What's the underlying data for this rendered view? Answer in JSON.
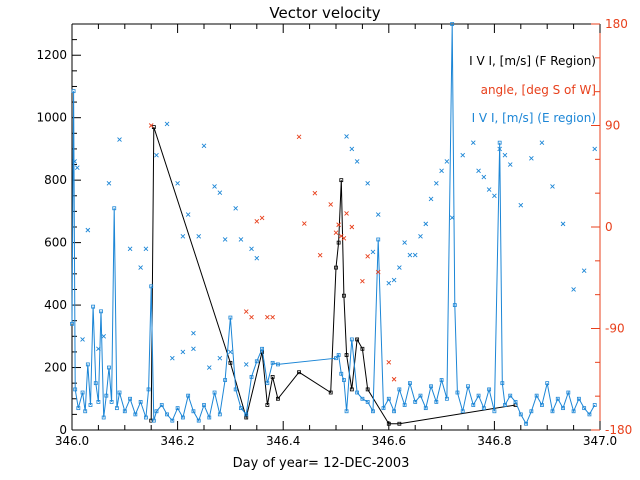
{
  "chart_data": {
    "type": "scatter",
    "title": "Vector velocity",
    "xlabel": "Day of year= 12-DEC-2003",
    "ylabel_left": "",
    "ylabel_right": "",
    "xlim": [
      346.0,
      347.0
    ],
    "ylim_left": [
      0,
      1300
    ],
    "ylim_right": [
      -180,
      180
    ],
    "x_ticks": [
      346.0,
      346.2,
      346.4,
      346.6,
      346.8,
      347.0
    ],
    "x_tick_labels": [
      "346.0",
      "346.2",
      "346.4",
      "346.6",
      "346.8",
      "347.0"
    ],
    "y_left_ticks": [
      0,
      200,
      400,
      600,
      800,
      1000,
      1200
    ],
    "y_left_tick_labels": [
      "0",
      "200",
      "400",
      "600",
      "800",
      "1000",
      "1200"
    ],
    "y_right_ticks": [
      -180,
      -90,
      0,
      90,
      180
    ],
    "y_right_tick_labels": [
      "-180",
      "-90",
      "0",
      "90",
      "180"
    ],
    "colors": {
      "axes": "#000000",
      "f_region": "#000000",
      "angle": "#e8401c",
      "e_region": "#1c86d6"
    },
    "legend": [
      {
        "label": "I V I, [m/s] (F Region)",
        "color": "#000000"
      },
      {
        "label": "angle, [deg S of W]",
        "color": "#e8401c"
      },
      {
        "label": "I V I, [m/s] (E region)",
        "color": "#1c86d6"
      }
    ],
    "series": [
      {
        "name": "|V| F Region",
        "color": "#000000",
        "style": "line-dots",
        "axis": "left",
        "points": [
          [
            346.15,
            30
          ],
          [
            346.155,
            970
          ],
          [
            346.3,
            215
          ],
          [
            346.33,
            40
          ],
          [
            346.36,
            250
          ],
          [
            346.37,
            80
          ],
          [
            346.38,
            170
          ],
          [
            346.39,
            100
          ],
          [
            346.43,
            185
          ],
          [
            346.49,
            120
          ],
          [
            346.5,
            520
          ],
          [
            346.505,
            600
          ],
          [
            346.51,
            800
          ],
          [
            346.515,
            430
          ],
          [
            346.52,
            240
          ],
          [
            346.53,
            130
          ],
          [
            346.54,
            290
          ],
          [
            346.55,
            260
          ],
          [
            346.56,
            130
          ],
          [
            346.6,
            20
          ],
          [
            346.62,
            20
          ],
          [
            346.84,
            80
          ]
        ]
      },
      {
        "name": "|V| E region",
        "color": "#1c86d6",
        "style": "line-dots",
        "axis": "left",
        "points": [
          [
            346.0,
            340
          ],
          [
            346.003,
            1085
          ],
          [
            346.006,
            130
          ],
          [
            346.012,
            70
          ],
          [
            346.02,
            120
          ],
          [
            346.025,
            60
          ],
          [
            346.03,
            210
          ],
          [
            346.035,
            80
          ],
          [
            346.04,
            395
          ],
          [
            346.045,
            150
          ],
          [
            346.05,
            90
          ],
          [
            346.055,
            380
          ],
          [
            346.06,
            40
          ],
          [
            346.065,
            110
          ],
          [
            346.07,
            200
          ],
          [
            346.075,
            90
          ],
          [
            346.08,
            710
          ],
          [
            346.085,
            70
          ],
          [
            346.09,
            120
          ],
          [
            346.1,
            60
          ],
          [
            346.11,
            100
          ],
          [
            346.12,
            50
          ],
          [
            346.13,
            90
          ],
          [
            346.14,
            40
          ],
          [
            346.145,
            130
          ],
          [
            346.15,
            460
          ],
          [
            346.155,
            30
          ],
          [
            346.16,
            60
          ],
          [
            346.17,
            80
          ],
          [
            346.18,
            50
          ],
          [
            346.19,
            30
          ],
          [
            346.2,
            70
          ],
          [
            346.21,
            40
          ],
          [
            346.22,
            110
          ],
          [
            346.23,
            60
          ],
          [
            346.24,
            30
          ],
          [
            346.25,
            80
          ],
          [
            346.26,
            40
          ],
          [
            346.27,
            120
          ],
          [
            346.28,
            50
          ],
          [
            346.29,
            160
          ],
          [
            346.3,
            360
          ],
          [
            346.31,
            130
          ],
          [
            346.32,
            70
          ],
          [
            346.33,
            50
          ],
          [
            346.34,
            170
          ],
          [
            346.35,
            220
          ],
          [
            346.36,
            260
          ],
          [
            346.37,
            150
          ],
          [
            346.38,
            215
          ],
          [
            346.39,
            210
          ],
          [
            346.5,
            230
          ],
          [
            346.505,
            240
          ],
          [
            346.51,
            180
          ],
          [
            346.515,
            160
          ],
          [
            346.52,
            60
          ],
          [
            346.53,
            290
          ],
          [
            346.54,
            120
          ],
          [
            346.55,
            100
          ],
          [
            346.56,
            90
          ],
          [
            346.57,
            60
          ],
          [
            346.58,
            610
          ],
          [
            346.59,
            70
          ],
          [
            346.6,
            100
          ],
          [
            346.61,
            60
          ],
          [
            346.62,
            130
          ],
          [
            346.63,
            80
          ],
          [
            346.64,
            150
          ],
          [
            346.65,
            90
          ],
          [
            346.66,
            110
          ],
          [
            346.67,
            70
          ],
          [
            346.68,
            140
          ],
          [
            346.69,
            90
          ],
          [
            346.7,
            160
          ],
          [
            346.71,
            100
          ],
          [
            346.72,
            1300
          ],
          [
            346.725,
            400
          ],
          [
            346.73,
            120
          ],
          [
            346.74,
            60
          ],
          [
            346.75,
            140
          ],
          [
            346.76,
            80
          ],
          [
            346.77,
            110
          ],
          [
            346.78,
            70
          ],
          [
            346.79,
            130
          ],
          [
            346.8,
            60
          ],
          [
            346.81,
            920
          ],
          [
            346.815,
            150
          ],
          [
            346.82,
            80
          ],
          [
            346.83,
            110
          ],
          [
            346.84,
            90
          ],
          [
            346.85,
            50
          ],
          [
            346.86,
            20
          ],
          [
            346.87,
            60
          ],
          [
            346.88,
            110
          ],
          [
            346.89,
            80
          ],
          [
            346.9,
            150
          ],
          [
            346.91,
            60
          ],
          [
            346.92,
            100
          ],
          [
            346.93,
            70
          ],
          [
            346.94,
            120
          ],
          [
            346.95,
            60
          ],
          [
            346.96,
            100
          ],
          [
            346.97,
            70
          ],
          [
            346.98,
            50
          ],
          [
            346.99,
            80
          ]
        ]
      },
      {
        "name": "|V| E region scatter",
        "color": "#1c86d6",
        "style": "cross",
        "axis": "left",
        "points": [
          [
            346.005,
            860
          ],
          [
            346.01,
            840
          ],
          [
            346.02,
            290
          ],
          [
            346.03,
            640
          ],
          [
            346.05,
            260
          ],
          [
            346.06,
            300
          ],
          [
            346.07,
            790
          ],
          [
            346.09,
            930
          ],
          [
            346.11,
            580
          ],
          [
            346.13,
            520
          ],
          [
            346.14,
            580
          ],
          [
            346.16,
            880
          ],
          [
            346.18,
            980
          ],
          [
            346.2,
            790
          ],
          [
            346.21,
            620
          ],
          [
            346.22,
            690
          ],
          [
            346.23,
            310
          ],
          [
            346.24,
            620
          ],
          [
            346.25,
            910
          ],
          [
            346.27,
            780
          ],
          [
            346.28,
            760
          ],
          [
            346.29,
            610
          ],
          [
            346.31,
            710
          ],
          [
            346.32,
            610
          ],
          [
            346.34,
            580
          ],
          [
            346.35,
            550
          ],
          [
            346.19,
            230
          ],
          [
            346.21,
            250
          ],
          [
            346.23,
            260
          ],
          [
            346.26,
            200
          ],
          [
            346.28,
            230
          ],
          [
            346.3,
            250
          ],
          [
            346.33,
            210
          ],
          [
            346.52,
            940
          ],
          [
            346.53,
            900
          ],
          [
            346.54,
            860
          ],
          [
            346.56,
            790
          ],
          [
            346.57,
            570
          ],
          [
            346.58,
            690
          ],
          [
            346.6,
            470
          ],
          [
            346.61,
            480
          ],
          [
            346.62,
            520
          ],
          [
            346.63,
            600
          ],
          [
            346.64,
            560
          ],
          [
            346.65,
            560
          ],
          [
            346.66,
            620
          ],
          [
            346.67,
            660
          ],
          [
            346.68,
            740
          ],
          [
            346.69,
            790
          ],
          [
            346.7,
            830
          ],
          [
            346.71,
            860
          ],
          [
            346.72,
            680
          ],
          [
            346.74,
            880
          ],
          [
            346.76,
            920
          ],
          [
            346.77,
            830
          ],
          [
            346.78,
            810
          ],
          [
            346.79,
            770
          ],
          [
            346.8,
            750
          ],
          [
            346.81,
            900
          ],
          [
            346.82,
            880
          ],
          [
            346.83,
            850
          ],
          [
            346.85,
            720
          ],
          [
            346.87,
            870
          ],
          [
            346.89,
            920
          ],
          [
            346.91,
            780
          ],
          [
            346.93,
            660
          ],
          [
            346.95,
            450
          ],
          [
            346.97,
            510
          ],
          [
            346.99,
            900
          ]
        ]
      },
      {
        "name": "angle",
        "color": "#e8401c",
        "style": "cross",
        "axis": "right",
        "points": [
          [
            346.15,
            90
          ],
          [
            346.33,
            -75
          ],
          [
            346.34,
            -80
          ],
          [
            346.35,
            5
          ],
          [
            346.36,
            8
          ],
          [
            346.37,
            -80
          ],
          [
            346.38,
            -80
          ],
          [
            346.44,
            3
          ],
          [
            346.46,
            30
          ],
          [
            346.5,
            -5
          ],
          [
            346.505,
            2
          ],
          [
            346.51,
            -8
          ],
          [
            346.515,
            -10
          ],
          [
            346.52,
            12
          ],
          [
            346.53,
            0
          ],
          [
            346.55,
            -48
          ],
          [
            346.56,
            -26
          ],
          [
            346.58,
            -40
          ],
          [
            346.6,
            -120
          ],
          [
            346.61,
            -135
          ],
          [
            346.43,
            80
          ],
          [
            346.47,
            -25
          ],
          [
            346.49,
            20
          ]
        ]
      }
    ]
  }
}
